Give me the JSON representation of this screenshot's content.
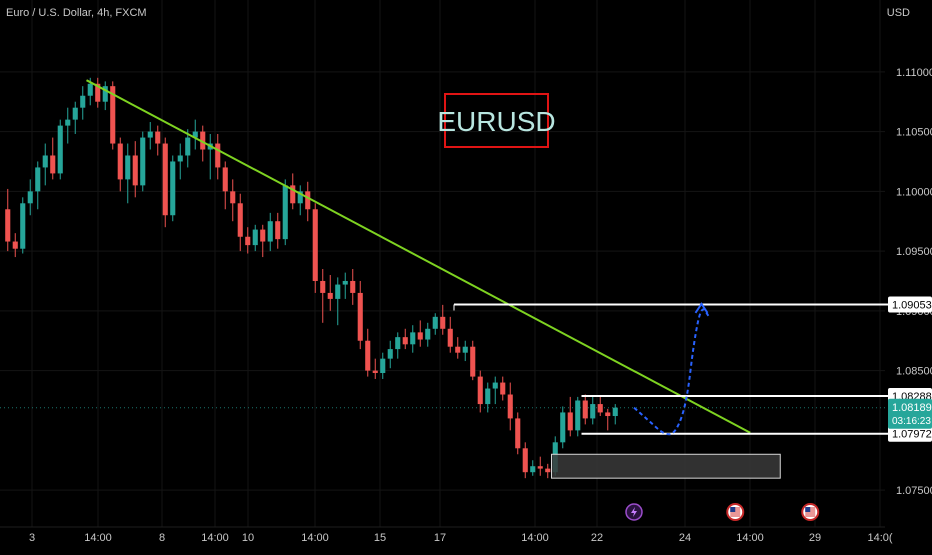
{
  "header": {
    "symbol_line": "Euro / U.S. Dollar, 4h, FXCM",
    "currency": "USD"
  },
  "badge": {
    "text": "EURUSD",
    "text_color": "#b8e6e0",
    "border_color": "#e01414"
  },
  "colors": {
    "background": "#000000",
    "up": "#26a69a",
    "down": "#ef5350",
    "trendline": "#7ed321",
    "projection": "#2962ff",
    "level": "#ffffff",
    "grid": "#141414"
  },
  "chart_data": {
    "type": "candlestick",
    "title": "Euro / U.S. Dollar, 4h, FXCM",
    "y_axis": {
      "ticks": [
        "1.11000",
        "1.10500",
        "1.10000",
        "1.09500",
        "1.09000",
        "1.08500",
        "1.07500"
      ],
      "range": [
        1.0725,
        1.1135
      ]
    },
    "x_axis": {
      "ticks": [
        "3",
        "14:00",
        "8",
        "14:00",
        "10",
        "14:00",
        "15",
        "17",
        "14:00",
        "22",
        "24",
        "14:00",
        "29",
        "14:0("
      ]
    },
    "price_labels": [
      {
        "name": "resistance-high",
        "value": "1.09053"
      },
      {
        "name": "resistance-low",
        "value": "1.08288"
      },
      {
        "name": "support",
        "value": "1.07972"
      }
    ],
    "current_price": {
      "value": "1.08189",
      "countdown": "03:16:23"
    },
    "candles": [
      [
        1.0985,
        1.1002,
        1.095,
        1.0958
      ],
      [
        1.0958,
        1.0965,
        1.0945,
        1.0952
      ],
      [
        1.0952,
        1.0995,
        1.0948,
        1.099
      ],
      [
        1.099,
        1.101,
        1.098,
        1.1
      ],
      [
        1.1,
        1.1025,
        1.0985,
        1.102
      ],
      [
        1.102,
        1.104,
        1.1005,
        1.103
      ],
      [
        1.103,
        1.1045,
        1.101,
        1.1015
      ],
      [
        1.1015,
        1.106,
        1.101,
        1.1055
      ],
      [
        1.1055,
        1.107,
        1.104,
        1.106
      ],
      [
        1.106,
        1.1075,
        1.1048,
        1.107
      ],
      [
        1.107,
        1.1088,
        1.106,
        1.108
      ],
      [
        1.108,
        1.1095,
        1.1072,
        1.109
      ],
      [
        1.109,
        1.1095,
        1.107,
        1.1075
      ],
      [
        1.1075,
        1.1092,
        1.1068,
        1.1088
      ],
      [
        1.1088,
        1.1092,
        1.1035,
        1.104
      ],
      [
        1.104,
        1.1045,
        1.1,
        1.101
      ],
      [
        1.101,
        1.104,
        1.099,
        1.103
      ],
      [
        1.103,
        1.1042,
        1.0995,
        1.1005
      ],
      [
        1.1005,
        1.105,
        1.1,
        1.1045
      ],
      [
        1.1045,
        1.1058,
        1.1035,
        1.105
      ],
      [
        1.105,
        1.1055,
        1.103,
        1.104
      ],
      [
        1.104,
        1.1045,
        1.097,
        1.098
      ],
      [
        1.098,
        1.103,
        1.0975,
        1.1025
      ],
      [
        1.1025,
        1.104,
        1.101,
        1.103
      ],
      [
        1.103,
        1.1052,
        1.102,
        1.1045
      ],
      [
        1.1045,
        1.106,
        1.1035,
        1.105
      ],
      [
        1.105,
        1.1055,
        1.1025,
        1.1035
      ],
      [
        1.1035,
        1.1048,
        1.101,
        1.104
      ],
      [
        1.104,
        1.1048,
        1.101,
        1.102
      ],
      [
        1.102,
        1.1025,
        1.0985,
        1.1
      ],
      [
        1.1,
        1.101,
        1.0975,
        1.099
      ],
      [
        1.099,
        1.0998,
        1.095,
        1.0962
      ],
      [
        1.0962,
        1.097,
        1.0948,
        1.0955
      ],
      [
        1.0955,
        1.0972,
        1.095,
        1.0968
      ],
      [
        1.0968,
        1.0972,
        1.0945,
        1.0958
      ],
      [
        1.0958,
        1.0982,
        1.095,
        1.0975
      ],
      [
        1.0975,
        1.0982,
        1.0952,
        1.096
      ],
      [
        1.096,
        1.101,
        1.0955,
        1.1005
      ],
      [
        1.1005,
        1.1015,
        1.0985,
        1.099
      ],
      [
        1.099,
        1.1005,
        1.098,
        1.1
      ],
      [
        1.1,
        1.1008,
        1.0975,
        1.0985
      ],
      [
        1.0985,
        1.099,
        1.0915,
        1.0925
      ],
      [
        1.0925,
        1.0935,
        1.089,
        1.0915
      ],
      [
        1.0915,
        1.093,
        1.09,
        1.091
      ],
      [
        1.091,
        1.0928,
        1.0888,
        1.0922
      ],
      [
        1.0922,
        1.0932,
        1.091,
        1.0925
      ],
      [
        1.0925,
        1.0935,
        1.0905,
        1.0915
      ],
      [
        1.0915,
        1.0925,
        1.0868,
        1.0875
      ],
      [
        1.0875,
        1.0885,
        1.0845,
        1.085
      ],
      [
        1.085,
        1.086,
        1.0843,
        1.0848
      ],
      [
        1.0848,
        1.0865,
        1.0843,
        1.086
      ],
      [
        1.086,
        1.0875,
        1.0852,
        1.0868
      ],
      [
        1.0868,
        1.0882,
        1.086,
        1.0878
      ],
      [
        1.0878,
        1.0885,
        1.0868,
        1.0872
      ],
      [
        1.0872,
        1.0888,
        1.0865,
        1.0882
      ],
      [
        1.0882,
        1.0892,
        1.087,
        1.0876
      ],
      [
        1.0876,
        1.089,
        1.087,
        1.0885
      ],
      [
        1.0885,
        1.0898,
        1.088,
        1.0895
      ],
      [
        1.0895,
        1.0905,
        1.088,
        1.0885
      ],
      [
        1.0885,
        1.0895,
        1.0865,
        1.087
      ],
      [
        1.087,
        1.0878,
        1.086,
        1.0865
      ],
      [
        1.0865,
        1.0875,
        1.0858,
        1.087
      ],
      [
        1.087,
        1.0875,
        1.0842,
        1.0845
      ],
      [
        1.0845,
        1.085,
        1.0815,
        1.0822
      ],
      [
        1.0822,
        1.084,
        1.0815,
        1.0835
      ],
      [
        1.0835,
        1.0845,
        1.0822,
        1.084
      ],
      [
        1.084,
        1.0845,
        1.0825,
        1.083
      ],
      [
        1.083,
        1.084,
        1.08,
        1.081
      ],
      [
        1.081,
        1.0815,
        1.078,
        1.0785
      ],
      [
        1.0785,
        1.079,
        1.076,
        1.0765
      ],
      [
        1.0765,
        1.0775,
        1.0762,
        1.077
      ],
      [
        1.077,
        1.0778,
        1.0762,
        1.0768
      ],
      [
        1.0768,
        1.0772,
        1.076,
        1.0765
      ],
      [
        1.0765,
        1.0795,
        1.0762,
        1.079
      ],
      [
        1.079,
        1.082,
        1.0785,
        1.0815
      ],
      [
        1.0815,
        1.0828,
        1.0795,
        1.08
      ],
      [
        1.08,
        1.0828,
        1.0795,
        1.0825
      ],
      [
        1.0825,
        1.083,
        1.0805,
        1.081
      ],
      [
        1.081,
        1.0828,
        1.0805,
        1.0822
      ],
      [
        1.0822,
        1.0828,
        1.0812,
        1.0815
      ],
      [
        1.0815,
        1.0818,
        1.08,
        1.0812
      ],
      [
        1.0812,
        1.0822,
        1.0805,
        1.0819
      ]
    ],
    "annotations": [
      {
        "type": "trendline",
        "from": [
          11,
          1.1093
        ],
        "to": [
          99.5,
          1.0798
        ]
      },
      {
        "type": "resistance-zone",
        "x_from": 60,
        "price": 1.09053
      },
      {
        "type": "level",
        "x_from": 77,
        "price": 1.08288
      },
      {
        "type": "level",
        "x_from": 77,
        "price": 1.07972
      },
      {
        "type": "demand-zone",
        "x_from": 73,
        "x_to": 103.5,
        "top": 1.078,
        "bottom": 1.076
      },
      {
        "type": "projection",
        "points": [
          [
            84,
            1.0819
          ],
          [
            86,
            1.0808
          ],
          [
            88,
            1.07965
          ],
          [
            89.5,
            1.0797
          ],
          [
            91,
            1.0822
          ],
          [
            92,
            1.0875
          ],
          [
            93,
            1.0905
          ],
          [
            94,
            1.0895
          ]
        ]
      }
    ],
    "event_icons": [
      {
        "x_index": 84,
        "name": "lightning-event-icon"
      },
      {
        "x_index": 97.5,
        "name": "us-flag-event-icon"
      },
      {
        "x_index": 107.5,
        "name": "us-flag-event-icon"
      }
    ]
  }
}
